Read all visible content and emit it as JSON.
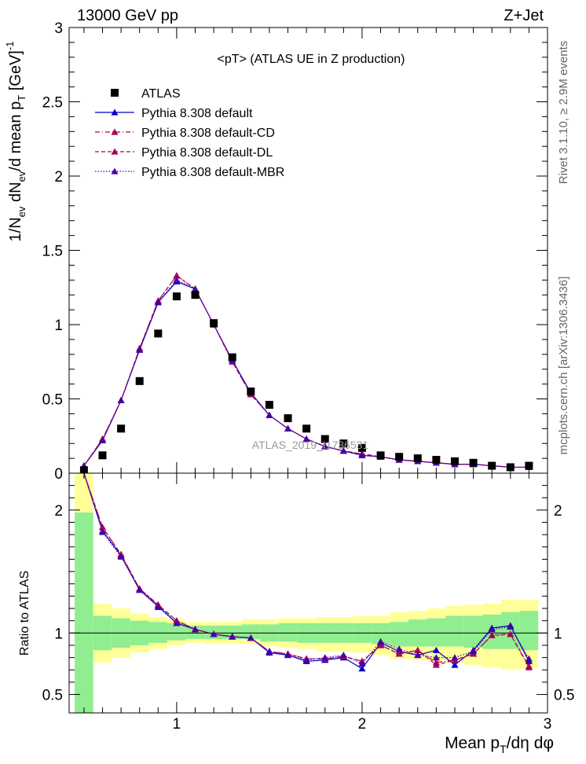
{
  "header": {
    "left": "13000 GeV pp",
    "right": "Z+Jet"
  },
  "plot_title": "<pT> (ATLAS UE in Z production)",
  "watermark": "ATLAS_2019_I1736531",
  "side_labels": {
    "rivet": "Rivet 3.1.10, ≥ 2.9M events",
    "mcplots": "mcplots.cern.ch [arXiv:1306.3436]"
  },
  "colors": {
    "data": "#000000",
    "default": "#0000cc",
    "cd": "#aa0055",
    "dl": "#aa0055",
    "mbr": "#4400aa",
    "band_inner": "#90ee90",
    "band_outer": "#ffff99"
  },
  "chart_data": [
    {
      "type": "scatter",
      "panel": "main",
      "xlabel": "Mean p_T/dη dφ",
      "ylabel": "1/N_ev dN_ev/d mean p_T [GeV]^-1",
      "xlim": [
        0.42,
        3.0
      ],
      "ylim": [
        0,
        3
      ],
      "y_ticks": [
        "0",
        "0.5",
        "1",
        "1.5",
        "2",
        "2.5",
        "3"
      ],
      "x_ticks": [
        "1",
        "2",
        "3"
      ],
      "legend_position": "top-left",
      "x": [
        0.5,
        0.6,
        0.7,
        0.8,
        0.9,
        1.0,
        1.1,
        1.2,
        1.3,
        1.4,
        1.5,
        1.6,
        1.7,
        1.8,
        1.9,
        2.0,
        2.1,
        2.2,
        2.3,
        2.4,
        2.5,
        2.6,
        2.7,
        2.8,
        2.9
      ],
      "series": [
        {
          "name": "ATLAS",
          "style": "data",
          "values": [
            0.02,
            0.12,
            0.3,
            0.62,
            0.94,
            1.19,
            1.2,
            1.01,
            0.78,
            0.55,
            0.46,
            0.37,
            0.3,
            0.23,
            0.2,
            0.17,
            0.12,
            0.11,
            0.1,
            0.09,
            0.08,
            0.07,
            0.05,
            0.04,
            0.05
          ]
        },
        {
          "name": "Pythia 8.308 default",
          "style": "solid",
          "values": [
            0.05,
            0.22,
            0.49,
            0.83,
            1.15,
            1.29,
            1.24,
            1.0,
            0.76,
            0.54,
            0.39,
            0.3,
            0.23,
            0.18,
            0.15,
            0.12,
            0.11,
            0.09,
            0.08,
            0.07,
            0.06,
            0.06,
            0.05,
            0.04,
            0.04
          ]
        },
        {
          "name": "Pythia 8.308 default-CD",
          "style": "dashdot",
          "values": [
            0.05,
            0.23,
            0.49,
            0.84,
            1.16,
            1.33,
            1.24,
            1.0,
            0.75,
            0.53,
            0.39,
            0.3,
            0.23,
            0.18,
            0.15,
            0.13,
            0.11,
            0.09,
            0.08,
            0.07,
            0.06,
            0.06,
            0.05,
            0.04,
            0.04
          ]
        },
        {
          "name": "Pythia 8.308 default-DL",
          "style": "dashed",
          "values": [
            0.05,
            0.23,
            0.49,
            0.84,
            1.16,
            1.33,
            1.24,
            1.0,
            0.75,
            0.53,
            0.39,
            0.3,
            0.23,
            0.18,
            0.15,
            0.13,
            0.11,
            0.09,
            0.08,
            0.07,
            0.06,
            0.06,
            0.05,
            0.04,
            0.04
          ]
        },
        {
          "name": "Pythia 8.308 default-MBR",
          "style": "dotted",
          "values": [
            0.05,
            0.22,
            0.49,
            0.83,
            1.15,
            1.3,
            1.24,
            1.0,
            0.76,
            0.54,
            0.39,
            0.3,
            0.23,
            0.18,
            0.15,
            0.12,
            0.11,
            0.09,
            0.08,
            0.07,
            0.06,
            0.06,
            0.05,
            0.04,
            0.04
          ]
        }
      ]
    },
    {
      "type": "line",
      "panel": "ratio",
      "ylabel": "Ratio to ATLAS",
      "xlabel": "Mean p_T/dη dφ",
      "xlim": [
        0.42,
        3.0
      ],
      "ylim": [
        0.35,
        2.3
      ],
      "y_ticks": [
        "0.5",
        "1",
        "2"
      ],
      "x_ticks": [
        "1",
        "2",
        "3"
      ],
      "x": [
        0.5,
        0.6,
        0.7,
        0.8,
        0.9,
        1.0,
        1.1,
        1.2,
        1.3,
        1.4,
        1.5,
        1.6,
        1.7,
        1.8,
        1.9,
        2.0,
        2.1,
        2.2,
        2.3,
        2.4,
        2.5,
        2.6,
        2.7,
        2.8,
        2.9
      ],
      "bands": {
        "edges": [
          0.45,
          0.55,
          0.65,
          0.75,
          0.85,
          0.95,
          1.05,
          1.15,
          1.25,
          1.35,
          1.45,
          1.55,
          1.65,
          1.75,
          1.85,
          1.95,
          2.05,
          2.15,
          2.25,
          2.35,
          2.45,
          2.55,
          2.65,
          2.75,
          2.85,
          2.95
        ],
        "inner_low": [
          0.0,
          0.86,
          0.88,
          0.9,
          0.92,
          0.94,
          0.95,
          0.95,
          0.95,
          0.95,
          0.93,
          0.93,
          0.92,
          0.92,
          0.92,
          0.92,
          0.91,
          0.89,
          0.89,
          0.89,
          0.89,
          0.88,
          0.87,
          0.87,
          0.86
        ],
        "inner_high": [
          1.98,
          1.14,
          1.12,
          1.1,
          1.09,
          1.08,
          1.06,
          1.06,
          1.06,
          1.07,
          1.07,
          1.08,
          1.08,
          1.08,
          1.08,
          1.08,
          1.08,
          1.09,
          1.11,
          1.12,
          1.14,
          1.14,
          1.15,
          1.17,
          1.18
        ],
        "outer_low": [
          0.0,
          0.76,
          0.8,
          0.84,
          0.87,
          0.9,
          0.92,
          0.91,
          0.91,
          0.91,
          0.89,
          0.88,
          0.87,
          0.85,
          0.85,
          0.84,
          0.82,
          0.79,
          0.78,
          0.77,
          0.76,
          0.74,
          0.72,
          0.7,
          0.71
        ],
        "outer_high": [
          2.3,
          1.24,
          1.2,
          1.16,
          1.13,
          1.11,
          1.09,
          1.09,
          1.09,
          1.11,
          1.11,
          1.12,
          1.12,
          1.13,
          1.13,
          1.14,
          1.14,
          1.17,
          1.18,
          1.2,
          1.22,
          1.23,
          1.24,
          1.27,
          1.27
        ]
      },
      "reference_line": 1,
      "series": [
        {
          "name": "Pythia 8.308 default",
          "style": "solid",
          "values": [
            2.5,
            1.83,
            1.63,
            1.35,
            1.22,
            1.08,
            1.03,
            0.99,
            0.97,
            0.96,
            0.84,
            0.82,
            0.77,
            0.78,
            0.8,
            0.71,
            0.92,
            0.85,
            0.82,
            0.86,
            0.74,
            0.86,
            1.04,
            1.06,
            0.77
          ]
        },
        {
          "name": "Pythia 8.308 default-CD",
          "style": "dashdot",
          "values": [
            2.5,
            1.86,
            1.64,
            1.36,
            1.23,
            1.1,
            1.03,
            0.99,
            0.97,
            0.96,
            0.85,
            0.83,
            0.79,
            0.79,
            0.81,
            0.77,
            0.9,
            0.83,
            0.86,
            0.76,
            0.78,
            0.83,
            0.98,
            0.99,
            0.72
          ]
        },
        {
          "name": "Pythia 8.308 default-DL",
          "style": "dashed",
          "values": [
            2.5,
            1.86,
            1.64,
            1.36,
            1.23,
            1.1,
            1.03,
            0.99,
            0.97,
            0.96,
            0.85,
            0.83,
            0.79,
            0.79,
            0.81,
            0.77,
            0.9,
            0.83,
            0.86,
            0.74,
            0.78,
            0.83,
            0.98,
            0.99,
            0.73
          ]
        },
        {
          "name": "Pythia 8.308 default-MBR",
          "style": "dotted",
          "values": [
            2.5,
            1.82,
            1.62,
            1.35,
            1.21,
            1.08,
            1.03,
            0.99,
            0.97,
            0.96,
            0.85,
            0.82,
            0.78,
            0.8,
            0.82,
            0.75,
            0.93,
            0.87,
            0.82,
            0.8,
            0.8,
            0.85,
            1.03,
            1.05,
            0.79
          ]
        }
      ]
    }
  ]
}
